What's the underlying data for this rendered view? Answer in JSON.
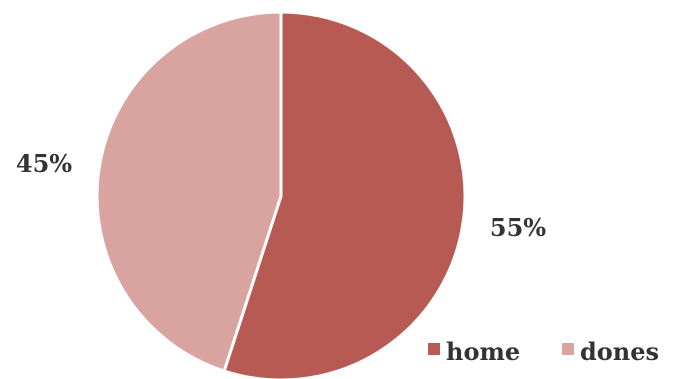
{
  "chart_data": {
    "type": "pie",
    "title": "",
    "slices": [
      {
        "name": "home",
        "value": 55,
        "label": "55%",
        "color": "#b85a54"
      },
      {
        "name": "dones",
        "value": 45,
        "label": "45%",
        "color": "#d9a3a0"
      }
    ],
    "start_angle_deg": 0,
    "direction": "clockwise",
    "legend_position": "bottom-right",
    "separator_color": "#ffffff"
  }
}
